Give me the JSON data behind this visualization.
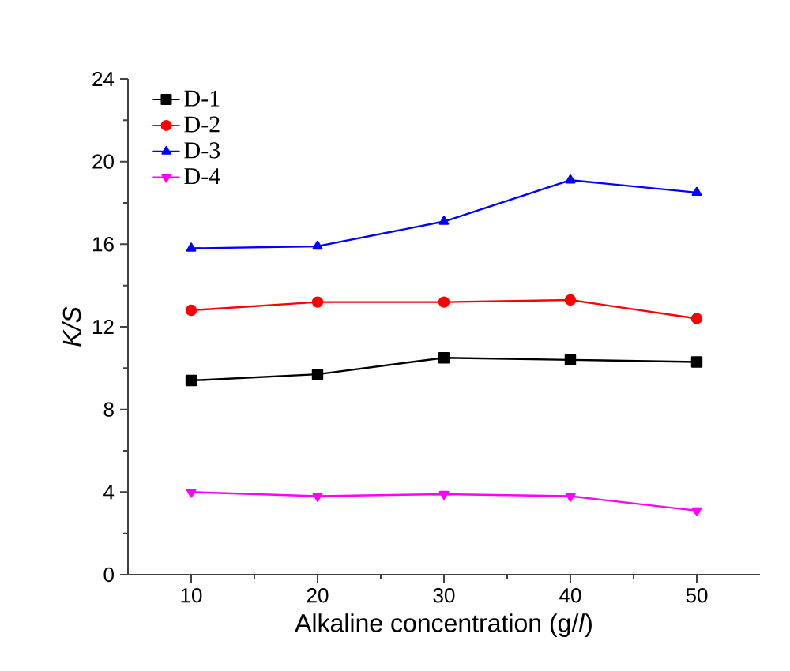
{
  "chart_data": {
    "type": "line",
    "xlabel": "Alkaline concentration (g/*l*)",
    "ylabel": "K/S",
    "x": [
      10,
      20,
      30,
      40,
      50
    ],
    "xlim": [
      5,
      55
    ],
    "xticks": [
      10,
      20,
      30,
      40,
      50
    ],
    "ylim": [
      0,
      24
    ],
    "yticks": [
      0,
      4,
      8,
      12,
      16,
      20,
      24
    ],
    "legend": "top left",
    "grid": false,
    "series": [
      {
        "name": "D-1",
        "color": "#000000",
        "marker": "square",
        "values": [
          9.4,
          9.7,
          10.5,
          10.4,
          10.3
        ]
      },
      {
        "name": "D-2",
        "color": "#ff0000",
        "marker": "circle",
        "values": [
          12.8,
          13.2,
          13.2,
          13.3,
          12.4
        ]
      },
      {
        "name": "D-3",
        "color": "#0000ff",
        "marker": "triangle",
        "values": [
          15.8,
          15.9,
          17.1,
          19.1,
          18.5
        ]
      },
      {
        "name": "D-4",
        "color": "#ff00ff",
        "marker": "triangle-down",
        "values": [
          4.0,
          3.8,
          3.9,
          3.8,
          3.1
        ]
      }
    ]
  }
}
